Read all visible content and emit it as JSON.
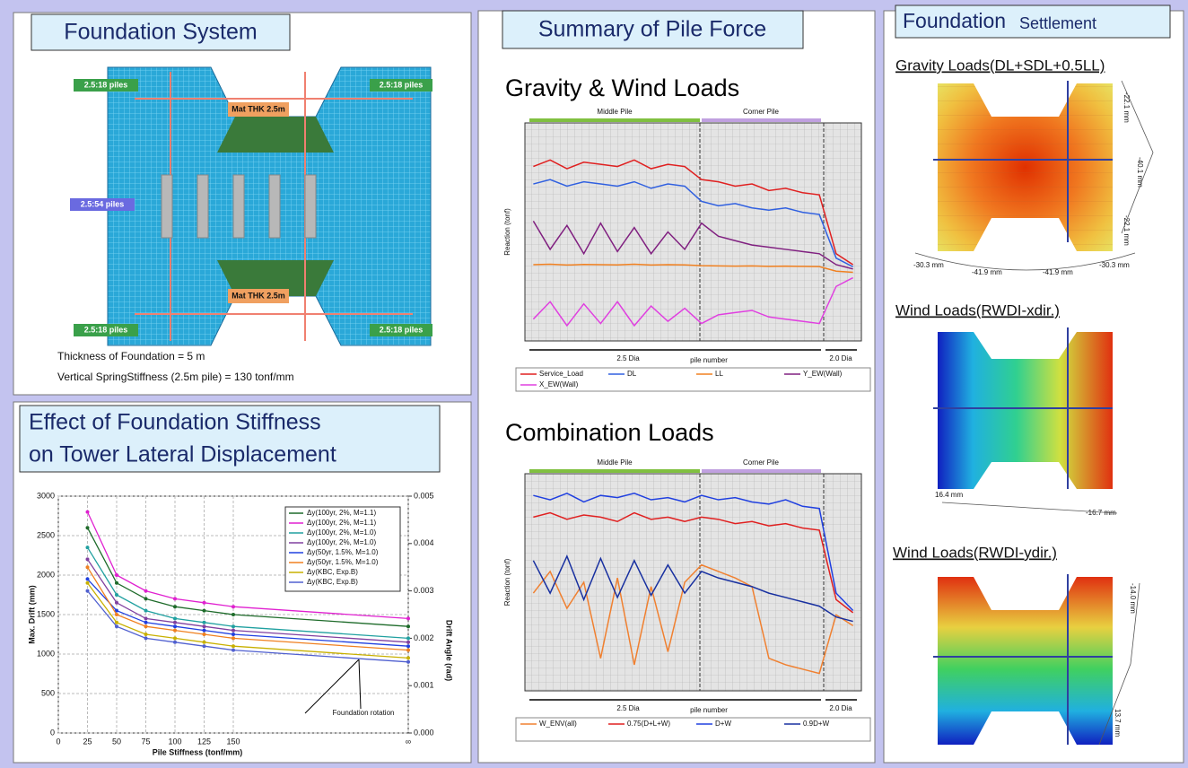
{
  "foundation_system": {
    "title": "Foundation System",
    "pile_labels": [
      "2.5:18 piles",
      "2.5:18 piles",
      "2.5:54 piles",
      "2.5:18 piles",
      "2.5:18 piles"
    ],
    "mat_labels": [
      "Mat THK 2.5m",
      "Mat THK 2.5m"
    ],
    "notes": [
      "Thickness of Foundation = 5 m",
      "Vertical SpringStiffness (2.5m pile) = 130 tonf/mm"
    ]
  },
  "pile_force": {
    "title": "Summary of Pile Force"
  },
  "settlement": {
    "title": [
      "Foundation",
      "Settlement"
    ],
    "panels": [
      {
        "title": "Gravity Loads(DL+SDL+0.5LL)",
        "labels": [
          "-22.1 mm",
          "-40.1 mm",
          "-22.1 mm",
          "-30.3 mm",
          "-41.9 mm",
          "-41.9 mm",
          "-30.3 mm"
        ]
      },
      {
        "title": "Wind Loads(RWDI-xdir.)",
        "labels": [
          "16.4 mm",
          "-16.7 mm"
        ]
      },
      {
        "title": "Wind Loads(RWDI-ydir.)",
        "labels": [
          "-14.0 mm",
          "13.7 mm"
        ]
      }
    ]
  },
  "chart_data": [
    {
      "type": "line",
      "title": [
        "Effect of Foundation Stiffness",
        "on Tower Lateral Displacement"
      ],
      "xlabel": "Pile Stiffness (tonf/mm)",
      "ylabel": "Max. Drift (mm)",
      "y2label": "Drift Angle (rad)",
      "annotation": "Foundation rotation",
      "x": [
        25,
        50,
        75,
        100,
        125,
        150,
        300
      ],
      "xlim": [
        0,
        300
      ],
      "xticks": [
        0,
        25,
        50,
        75,
        100,
        125,
        150,
        {
          "value": 300,
          "label": "∞"
        }
      ],
      "ylim": [
        0,
        3000
      ],
      "yticks": [
        0,
        500,
        1000,
        1500,
        2000,
        2500,
        3000
      ],
      "y2lim": [
        0,
        0.005
      ],
      "y2ticks": [
        {
          "value": 0,
          "label": "0.000"
        },
        {
          "value": 0.001,
          "label": "0.001"
        },
        {
          "value": 0.002,
          "label": "0.002"
        },
        {
          "value": 0.003,
          "label": "0.003"
        },
        {
          "value": 0.004,
          "label": "0.004"
        },
        {
          "value": 0.005,
          "label": "0.005"
        }
      ],
      "grid": true,
      "series": [
        {
          "name": "Δy(100yr, 2%, M=1.1)",
          "color": "#1e6b2a",
          "values": [
            2600,
            1900,
            1700,
            1600,
            1550,
            1500,
            1350
          ]
        },
        {
          "name": "Δy(100yr, 2%, M=1.1)",
          "color": "#e020d0",
          "values": [
            2800,
            2000,
            1800,
            1700,
            1650,
            1600,
            1450
          ]
        },
        {
          "name": "Δy(100yr, 2%, M=1.0)",
          "color": "#20a0a0",
          "values": [
            2350,
            1750,
            1550,
            1450,
            1400,
            1350,
            1200
          ]
        },
        {
          "name": "Δy(100yr, 2%, M=1.0)",
          "color": "#8040a0",
          "values": [
            2200,
            1650,
            1450,
            1400,
            1350,
            1300,
            1150
          ]
        },
        {
          "name": "Δy(50yr, 1.5%, M=1.0)",
          "color": "#2040e0",
          "values": [
            1950,
            1550,
            1400,
            1350,
            1300,
            1250,
            1100
          ]
        },
        {
          "name": "Δy(50yr, 1.5%, M=1.0)",
          "color": "#f08020",
          "values": [
            2100,
            1500,
            1350,
            1300,
            1250,
            1200,
            1050
          ]
        },
        {
          "name": "Δy(KBC, Exp.B)",
          "color": "#c8b000",
          "values": [
            1900,
            1400,
            1250,
            1200,
            1150,
            1100,
            950
          ]
        },
        {
          "name": "Δy(KBC, Exp.B)",
          "color": "#5060d0",
          "values": [
            1800,
            1350,
            1200,
            1150,
            1100,
            1050,
            900
          ]
        }
      ]
    },
    {
      "type": "line",
      "title": "Gravity & Wind Loads",
      "ylabel": "Reaction (tonf)",
      "xlabel": "pile number",
      "groups": [
        "Middle Pile",
        "Corner Pile"
      ],
      "dia_labels": [
        "2.5 Dia",
        "2.0 Dia"
      ],
      "ylim": [
        -3000,
        7000
      ],
      "series": [
        {
          "name": "Service_Load",
          "color": "#e02020",
          "values": [
            5000,
            5300,
            4900,
            5200,
            5100,
            5000,
            5300,
            4900,
            5100,
            5000,
            4400,
            4300,
            4100,
            4200,
            3900,
            4000,
            3800,
            3700,
            1000,
            500
          ]
        },
        {
          "name": "DL",
          "color": "#3060e0",
          "values": [
            4200,
            4400,
            4100,
            4300,
            4200,
            4100,
            4300,
            4000,
            4200,
            4100,
            3400,
            3200,
            3300,
            3100,
            3000,
            3100,
            2900,
            2800,
            800,
            400
          ]
        },
        {
          "name": "LL",
          "color": "#f08020",
          "values": [
            500,
            520,
            480,
            510,
            500,
            490,
            520,
            480,
            500,
            490,
            450,
            440,
            430,
            440,
            420,
            430,
            420,
            410,
            200,
            150
          ]
        },
        {
          "name": "Y_EW(Wall)",
          "color": "#802080",
          "values": [
            2500,
            1200,
            2300,
            1000,
            2400,
            1100,
            2200,
            1000,
            2000,
            1200,
            2400,
            1800,
            1600,
            1400,
            1300,
            1200,
            1100,
            1000,
            500,
            300
          ]
        },
        {
          "name": "X_EW(Wall)",
          "color": "#e040e0",
          "values": [
            -2000,
            -1200,
            -2300,
            -1300,
            -2200,
            -1200,
            -2300,
            -1400,
            -2100,
            -1500,
            -2200,
            -1800,
            -1700,
            -1600,
            -1900,
            -2000,
            -2100,
            -2200,
            -500,
            -100
          ]
        }
      ]
    },
    {
      "type": "line",
      "title": "Combination Loads",
      "ylabel": "Reaction (tonf)",
      "xlabel": "pile number",
      "groups": [
        "Middle Pile",
        "Corner Pile"
      ],
      "dia_labels": [
        "2.5 Dia",
        "2.0 Dia"
      ],
      "ylim": [
        -3000,
        7000
      ],
      "series": [
        {
          "name": "W_ENV(all)",
          "color": "#f08030",
          "values": [
            1500,
            2500,
            800,
            2000,
            -1500,
            2200,
            -1800,
            1800,
            -1200,
            2000,
            2800,
            2500,
            2200,
            1800,
            -1500,
            -1800,
            -2000,
            -2200,
            500,
            0
          ]
        },
        {
          "name": "0.75(D+L+W)",
          "color": "#e02020",
          "values": [
            5000,
            5200,
            4900,
            5100,
            5000,
            4800,
            5200,
            4900,
            5000,
            4800,
            5000,
            4900,
            4700,
            4800,
            4600,
            4700,
            4500,
            4400,
            1200,
            600
          ]
        },
        {
          "name": "D+W",
          "color": "#2040e0",
          "values": [
            6000,
            5800,
            6100,
            5700,
            6000,
            5900,
            6100,
            5800,
            5900,
            5700,
            6000,
            5800,
            5900,
            5700,
            5600,
            5800,
            5500,
            5400,
            1500,
            700
          ]
        },
        {
          "name": "0.9D+W",
          "color": "#1830a0",
          "values": [
            3000,
            1500,
            3200,
            1200,
            3100,
            1300,
            3000,
            1400,
            2800,
            1500,
            2500,
            2200,
            2000,
            1800,
            1500,
            1300,
            1100,
            900,
            400,
            200
          ]
        }
      ]
    }
  ]
}
